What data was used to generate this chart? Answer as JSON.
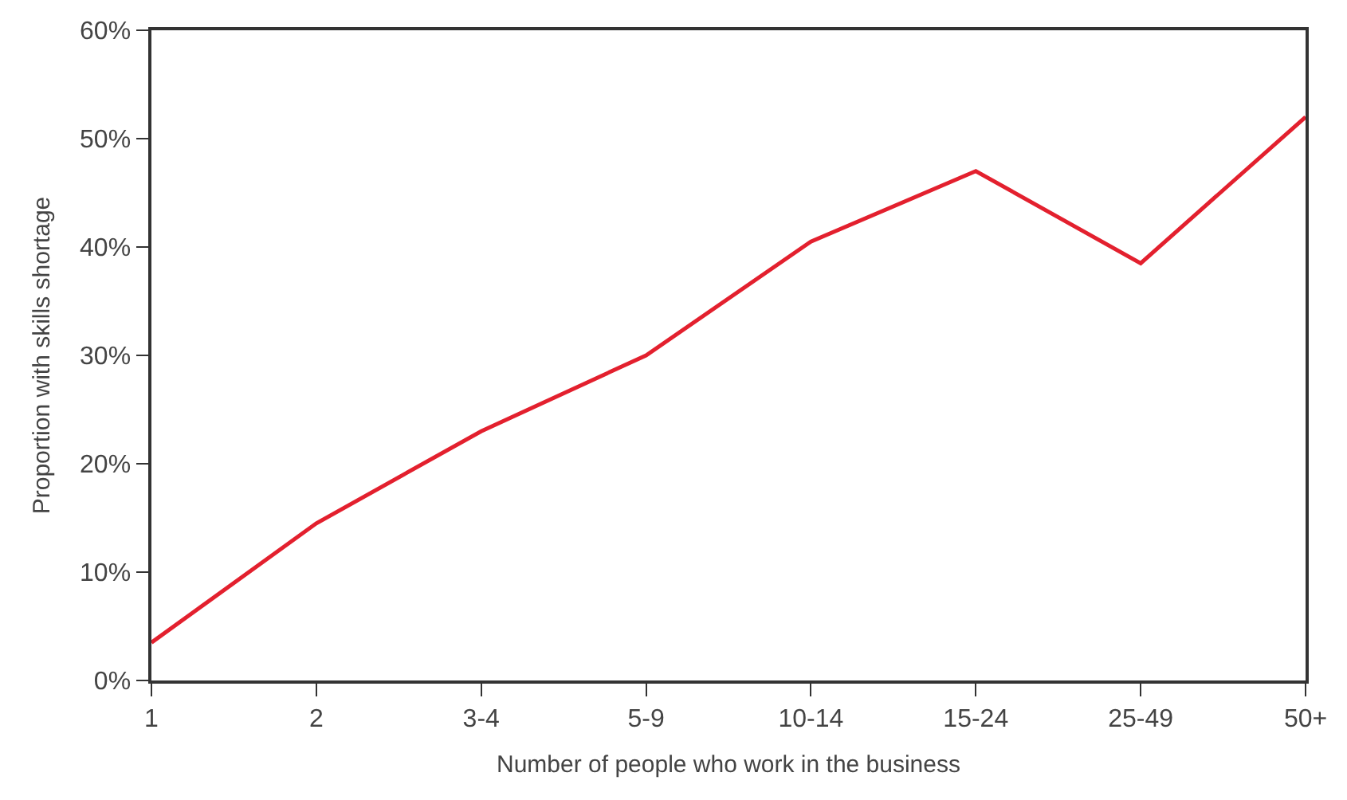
{
  "chart_data": {
    "type": "line",
    "xlabel": "Number of people who work in the business",
    "ylabel": "Proportion with skills shortage",
    "categories": [
      "1",
      "2",
      "3-4",
      "5-9",
      "10-14",
      "15-24",
      "25-49",
      "50+"
    ],
    "series": [
      {
        "color": "#e3202e",
        "values": [
          3.5,
          14.5,
          23,
          30,
          40.5,
          47,
          38.5,
          52
        ]
      }
    ],
    "ylim": [
      0,
      60
    ],
    "yticks": [
      {
        "value": 0,
        "label": "0%"
      },
      {
        "value": 10,
        "label": "10%"
      },
      {
        "value": 20,
        "label": "20%"
      },
      {
        "value": 30,
        "label": "30%"
      },
      {
        "value": 40,
        "label": "40%"
      },
      {
        "value": 50,
        "label": "50%"
      },
      {
        "value": 60,
        "label": "60%"
      }
    ],
    "legend": false,
    "marker": "none",
    "line_style": "solid"
  }
}
